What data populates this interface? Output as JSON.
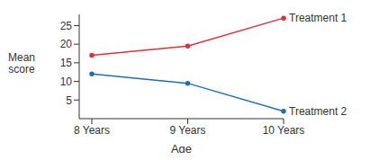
{
  "chart_data": {
    "type": "line",
    "x_label": "Age",
    "y_label": "Mean score",
    "categories": [
      "8 Years",
      "9 Years",
      "10 Years"
    ],
    "series": [
      {
        "name": "Treatment 1",
        "color": "#e0303a",
        "values": [
          17,
          19.5,
          27
        ]
      },
      {
        "name": "Treatment 2",
        "color": "#1f6fb5",
        "values": [
          12,
          9.5,
          2
        ]
      }
    ],
    "ylim": [
      0,
      28
    ],
    "yticks": [
      5,
      10,
      15,
      20,
      25
    ],
    "grid": false,
    "marker": "circle"
  }
}
